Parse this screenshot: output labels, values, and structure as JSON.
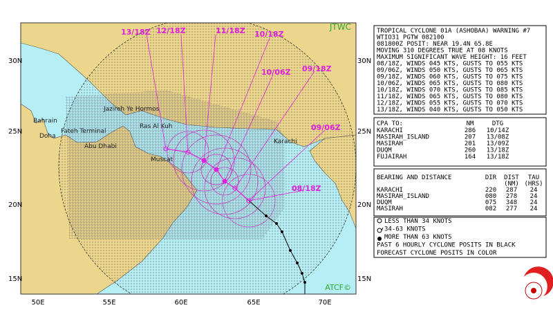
{
  "map": {
    "agency": "JTWC",
    "credit": "ATCF©",
    "lat_labels": [
      "30N",
      "25N",
      "20N",
      "15N"
    ],
    "lon_labels": [
      "50E",
      "55E",
      "60E",
      "65E",
      "70E"
    ],
    "places": [
      "Bahrain",
      "Doha",
      "Fateh Terminal",
      "Abu Dhabi",
      "Jazireh Ye Hormos",
      "Ras Al Kuh",
      "Muscat",
      "Karachi"
    ],
    "forecast_labels": [
      "13/18Z",
      "12/18Z",
      "11/18Z",
      "10/18Z",
      "10/06Z",
      "09/18Z",
      "09/06Z",
      "08/18Z"
    ]
  },
  "warning": {
    "lines": [
      "TROPICAL CYCLONE 01A (ASHOBAA) WARNING #7",
      "WTIO31 PGTW 082100",
      "081800Z POSIT: NEAR 19.4N 65.8E",
      "MOVING 310 DEGREES TRUE AT 08 KNOTS",
      "MAXIMUM SIGNIFICANT WAVE HEIGHT: 16 FEET",
      "08/18Z, WINDS 045 KTS, GUSTS TO 055 KTS",
      "09/06Z, WINDS 050 KTS, GUSTS TO 065 KTS",
      "09/18Z, WINDS 060 KTS, GUSTS TO 075 KTS",
      "10/06Z, WINDS 065 KTS, GUSTS TO 080 KTS",
      "10/18Z, WINDS 070 KTS, GUSTS TO 085 KTS",
      "11/18Z, WINDS 065 KTS, GUSTS TO 080 KTS",
      "12/18Z, WINDS 055 KTS, GUSTS TO 070 KTS",
      "13/18Z, WINDS 040 KTS, GUSTS TO 050 KTS"
    ]
  },
  "cpa": {
    "header": [
      "CPA TO:",
      "NM",
      "DTG"
    ],
    "rows": [
      [
        "KARACHI",
        "286",
        "10/14Z"
      ],
      [
        "MASIRAH_ISLAND",
        "207",
        "13/08Z"
      ],
      [
        "MASIRAH",
        "201",
        "13/09Z"
      ],
      [
        "DUQM",
        "260",
        "13/18Z"
      ],
      [
        "FUJAIRAH",
        "164",
        "13/18Z"
      ]
    ]
  },
  "bearing": {
    "header": [
      "BEARING AND DISTANCE",
      "DIR",
      "DIST",
      "TAU"
    ],
    "subheader": [
      "(NM)",
      "(HRS)"
    ],
    "rows": [
      [
        "KARACHI",
        "220",
        "287",
        "24"
      ],
      [
        "MASIRAH_ISLAND",
        "080",
        "278",
        "24"
      ],
      [
        "DUQM",
        "075",
        "348",
        "24"
      ],
      [
        "MASIRAH",
        "082",
        "277",
        "24"
      ]
    ]
  },
  "legend": {
    "items": [
      "LESS THAN 34 KNOTS",
      "34-63 KNOTS",
      "MORE THAN 63 KNOTS",
      "PAST 6 HOURLY CYCLONE POSITS IN BLACK",
      "FORECAST CYCLONE POSITS IN COLOR"
    ]
  }
}
